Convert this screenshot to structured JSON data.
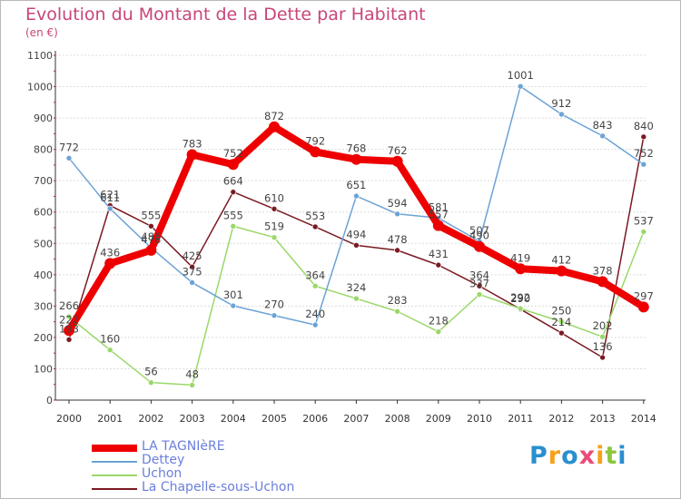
{
  "title": "Evolution du Montant de la Dette par Habitant",
  "subtitle": "(en €)",
  "logo": {
    "letters": [
      "P",
      "r",
      "o",
      "x",
      "i",
      "t",
      "i"
    ],
    "colors": [
      "#2a8fd0",
      "#f6a11c",
      "#2a8fd0",
      "#ea4a7a",
      "#f6a11c",
      "#8dc63f",
      "#2a8fd0"
    ]
  },
  "chart_data": {
    "type": "line",
    "title": "Evolution du Montant de la Dette par Habitant",
    "ylabel": "(en €)",
    "xlabel": "",
    "categories": [
      "2000",
      "2001",
      "2002",
      "2003",
      "2004",
      "2005",
      "2006",
      "2007",
      "2008",
      "2009",
      "2010",
      "2011",
      "2012",
      "2013",
      "2014"
    ],
    "ylim": [
      0,
      1100
    ],
    "yticks": [
      "0",
      "100",
      "200",
      "300",
      "400",
      "500",
      "600",
      "700",
      "800",
      "900",
      "1000",
      "1100"
    ],
    "grid": "horizontal",
    "legend_position": "bottom",
    "series": [
      {
        "name": "La Chapelle-sous-Uchon",
        "color": "#7a1a22",
        "values": [
          193,
          621,
          555,
          425,
          664,
          610,
          553,
          494,
          478,
          431,
          364,
          290,
          214,
          136,
          840
        ]
      },
      {
        "name": "Uchon",
        "color": "#9ad86a",
        "values": [
          266,
          160,
          56,
          48,
          555,
          519,
          364,
          324,
          283,
          218,
          337,
          292,
          250,
          202,
          537
        ]
      },
      {
        "name": "Dettey",
        "color": "#6ba3d6",
        "values": [
          772,
          611,
          486,
          375,
          301,
          270,
          240,
          651,
          594,
          581,
          507,
          1001,
          912,
          843,
          752
        ]
      },
      {
        "name": "LA TAGNIèRE",
        "color": "#ee0000",
        "values": [
          222,
          436,
          478,
          783,
          752,
          872,
          792,
          768,
          762,
          557,
          490,
          419,
          412,
          378,
          297
        ]
      }
    ]
  },
  "legend": [
    {
      "label": "LA TAGNIèRE",
      "color": "#ee0000"
    },
    {
      "label": "Dettey",
      "color": "#6ba3d6"
    },
    {
      "label": "Uchon",
      "color": "#9ad86a"
    },
    {
      "label": "La Chapelle-sous-Uchon",
      "color": "#7a1a22"
    }
  ]
}
